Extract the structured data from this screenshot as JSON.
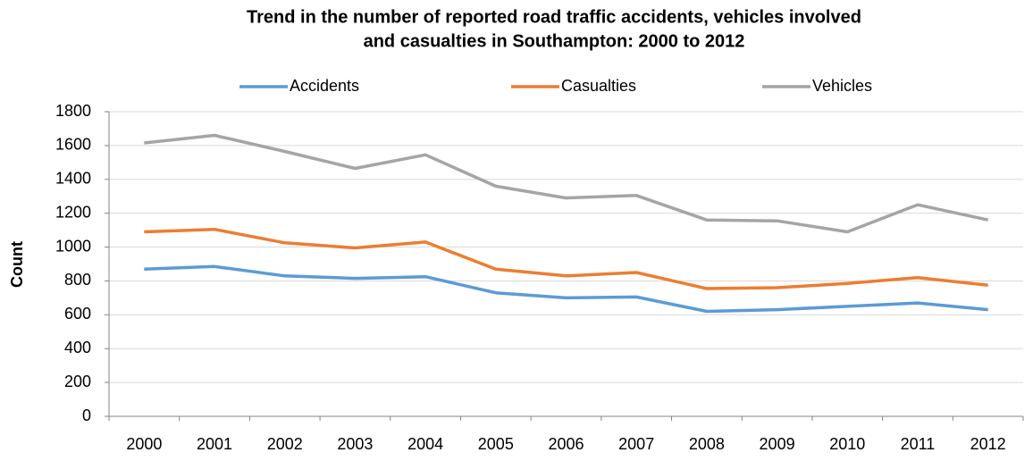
{
  "chart_data": {
    "type": "line",
    "title": [
      "Trend in the number of reported road traffic accidents, vehicles involved",
      "and casualties in Southampton: 2000 to 2012"
    ],
    "y_label": "Count",
    "categories": [
      "2000",
      "2001",
      "2002",
      "2003",
      "2004",
      "2005",
      "2006",
      "2007",
      "2008",
      "2009",
      "2010",
      "2011",
      "2012"
    ],
    "series": [
      {
        "name": "Accidents",
        "color": "#5b9bd5",
        "values": [
          870,
          885,
          830,
          815,
          825,
          730,
          700,
          705,
          620,
          630,
          650,
          670,
          630
        ]
      },
      {
        "name": "Casualties",
        "color": "#ed7d31",
        "values": [
          1090,
          1105,
          1025,
          995,
          1030,
          870,
          830,
          850,
          755,
          760,
          785,
          820,
          775
        ]
      },
      {
        "name": "Vehicles",
        "color": "#a5a5a5",
        "values": [
          1615,
          1660,
          1565,
          1465,
          1545,
          1360,
          1290,
          1305,
          1160,
          1155,
          1090,
          1250,
          1160
        ]
      }
    ],
    "ylim": [
      0,
      1800
    ],
    "yticks": [
      0,
      200,
      400,
      600,
      800,
      1000,
      1200,
      1400,
      1600,
      1800
    ],
    "grid": true,
    "legend": "top"
  }
}
